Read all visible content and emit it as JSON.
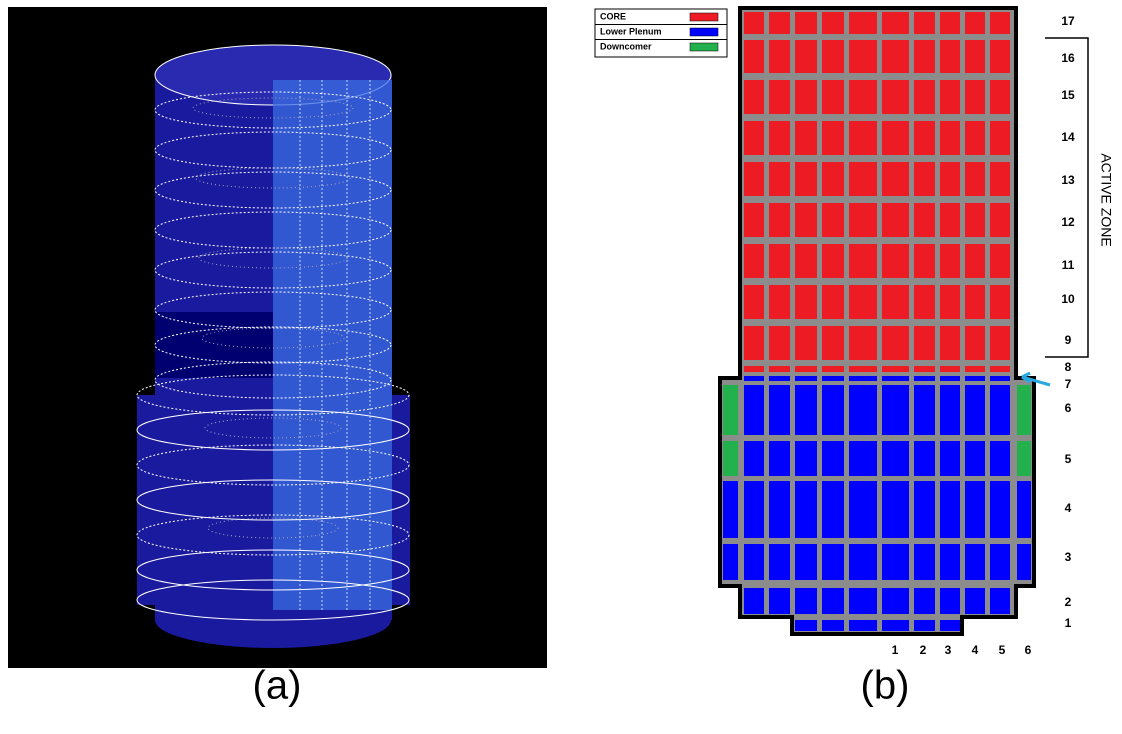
{
  "panel_a": {
    "caption": "(a)"
  },
  "panel_b": {
    "caption": "(b)",
    "legend": [
      {
        "label": "CORE",
        "color": "#ed1c24"
      },
      {
        "label": "Lower Plenum",
        "color": "#0000ff"
      },
      {
        "label": "Downcomer",
        "color": "#22b14c"
      }
    ],
    "row_labels": [
      "1",
      "2",
      "3",
      "4",
      "5",
      "6",
      "7",
      "8",
      "9",
      "10",
      "11",
      "12",
      "13",
      "14",
      "15",
      "16",
      "17"
    ],
    "column_labels": [
      "1",
      "2",
      "3",
      "4",
      "5",
      "6"
    ],
    "zone_label": "ACTIVE ZONE"
  }
}
